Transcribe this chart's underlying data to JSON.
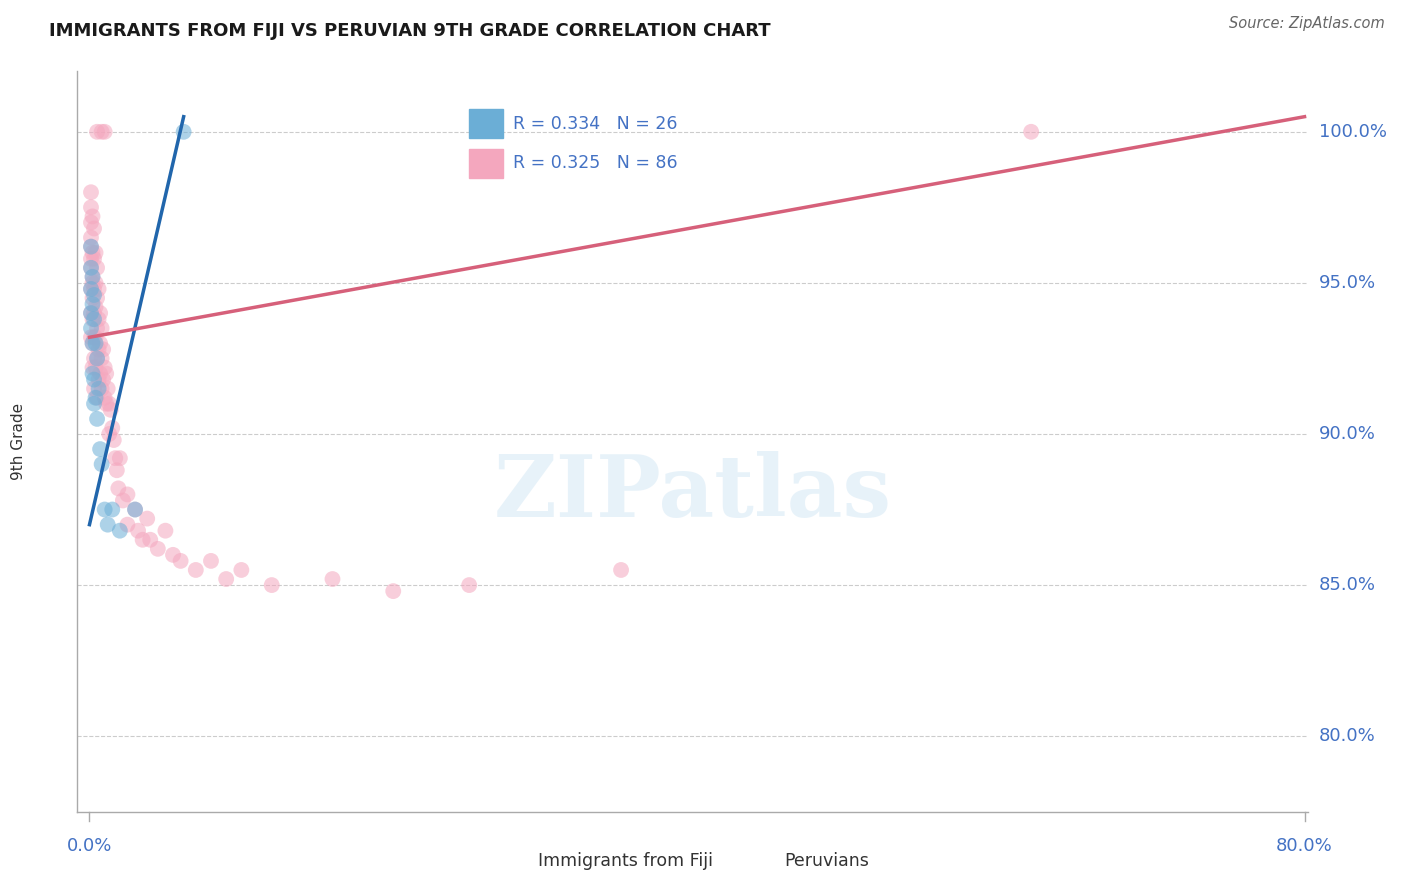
{
  "title": "IMMIGRANTS FROM FIJI VS PERUVIAN 9TH GRADE CORRELATION CHART",
  "source": "Source: ZipAtlas.com",
  "ylabel": "9th Grade",
  "ytick_labels": [
    "80.0%",
    "85.0%",
    "90.0%",
    "95.0%",
    "100.0%"
  ],
  "ytick_values": [
    0.8,
    0.85,
    0.9,
    0.95,
    1.0
  ],
  "xlim": [
    0.0,
    0.8
  ],
  "ylim": [
    0.775,
    1.02
  ],
  "legend_r_fiji": "R = 0.334",
  "legend_n_fiji": "N = 26",
  "legend_r_peru": "R = 0.325",
  "legend_n_peru": "N = 86",
  "color_fiji": "#6baed6",
  "color_peru": "#f4a7be",
  "trendline_color_fiji": "#2166ac",
  "trendline_color_peru": "#d6607a",
  "label_fiji": "Immigrants from Fiji",
  "label_peru": "Peruvians",
  "color_axis_label": "#4472c4",
  "color_title": "#1a1a1a",
  "color_source": "#666666",
  "marker_size": 130,
  "marker_alpha": 0.55,
  "fiji_x": [
    0.001,
    0.001,
    0.001,
    0.001,
    0.001,
    0.002,
    0.002,
    0.002,
    0.002,
    0.003,
    0.003,
    0.003,
    0.003,
    0.004,
    0.004,
    0.005,
    0.005,
    0.006,
    0.007,
    0.008,
    0.01,
    0.012,
    0.015,
    0.02,
    0.03,
    0.062
  ],
  "fiji_y": [
    0.94,
    0.948,
    0.955,
    0.962,
    0.935,
    0.943,
    0.952,
    0.93,
    0.92,
    0.938,
    0.946,
    0.918,
    0.91,
    0.93,
    0.912,
    0.925,
    0.905,
    0.915,
    0.895,
    0.89,
    0.875,
    0.87,
    0.875,
    0.868,
    0.875,
    1.0
  ],
  "peru_x": [
    0.001,
    0.001,
    0.001,
    0.001,
    0.001,
    0.001,
    0.001,
    0.001,
    0.001,
    0.001,
    0.002,
    0.002,
    0.002,
    0.002,
    0.002,
    0.002,
    0.002,
    0.002,
    0.003,
    0.003,
    0.003,
    0.003,
    0.003,
    0.003,
    0.003,
    0.004,
    0.004,
    0.004,
    0.004,
    0.004,
    0.005,
    0.005,
    0.005,
    0.005,
    0.005,
    0.006,
    0.006,
    0.006,
    0.006,
    0.007,
    0.007,
    0.007,
    0.008,
    0.008,
    0.008,
    0.009,
    0.009,
    0.01,
    0.01,
    0.011,
    0.011,
    0.012,
    0.013,
    0.013,
    0.014,
    0.015,
    0.016,
    0.017,
    0.018,
    0.019,
    0.02,
    0.022,
    0.025,
    0.025,
    0.03,
    0.032,
    0.035,
    0.038,
    0.04,
    0.045,
    0.05,
    0.055,
    0.06,
    0.07,
    0.08,
    0.09,
    0.1,
    0.12,
    0.16,
    0.2,
    0.25,
    0.35,
    0.62,
    0.01,
    0.005,
    0.008
  ],
  "peru_y": [
    0.98,
    0.97,
    0.962,
    0.955,
    0.948,
    0.94,
    0.932,
    0.958,
    0.965,
    0.975,
    0.972,
    0.96,
    0.952,
    0.945,
    0.938,
    0.93,
    0.922,
    0.95,
    0.968,
    0.958,
    0.948,
    0.94,
    0.932,
    0.925,
    0.915,
    0.96,
    0.95,
    0.942,
    0.932,
    0.922,
    0.955,
    0.945,
    0.935,
    0.925,
    0.912,
    0.948,
    0.938,
    0.928,
    0.918,
    0.94,
    0.93,
    0.92,
    0.935,
    0.925,
    0.915,
    0.928,
    0.918,
    0.922,
    0.912,
    0.92,
    0.91,
    0.915,
    0.91,
    0.9,
    0.908,
    0.902,
    0.898,
    0.892,
    0.888,
    0.882,
    0.892,
    0.878,
    0.88,
    0.87,
    0.875,
    0.868,
    0.865,
    0.872,
    0.865,
    0.862,
    0.868,
    0.86,
    0.858,
    0.855,
    0.858,
    0.852,
    0.855,
    0.85,
    0.852,
    0.848,
    0.85,
    0.855,
    1.0,
    1.0,
    1.0,
    1.0
  ],
  "grid_color": "#cccccc",
  "spine_color": "#aaaaaa",
  "trendline_fiji_x0": 0.0,
  "trendline_fiji_x1": 0.062,
  "trendline_fiji_y0": 0.87,
  "trendline_fiji_y1": 1.005,
  "trendline_peru_x0": 0.0,
  "trendline_peru_x1": 0.8,
  "trendline_peru_y0": 0.932,
  "trendline_peru_y1": 1.005
}
